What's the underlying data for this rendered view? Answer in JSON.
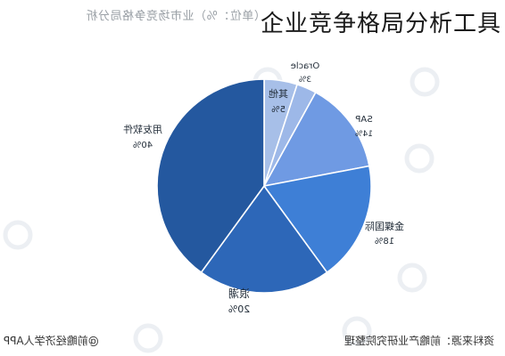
{
  "header": {
    "subtitle": "（单位：%）业市场竞争格局分析",
    "overlay_title": "企业竞争格局分析工具"
  },
  "footer": {
    "left": "@前瞻经济学人APP",
    "right": "资料来源：前瞻产业研究院整理"
  },
  "colors": {
    "light": "#a7bfe8",
    "mid": "#6f9ae3",
    "blue": "#3e7fd6",
    "deep": "#2d67b8",
    "dark": "#24589f",
    "border": "#ffffff"
  },
  "chart_data": {
    "type": "pie",
    "title": "",
    "start": "top",
    "direction": "counterclockwise",
    "slices": [
      {
        "label": "其他",
        "value": 5,
        "display": "5%",
        "color": "#a7bfe8"
      },
      {
        "label": "Oracle",
        "value": 3,
        "display": "3%",
        "color": "#9db8e8"
      },
      {
        "label": "SAP",
        "value": 14,
        "display": "14%",
        "color": "#6f9ae3"
      },
      {
        "label": "金蝶国际",
        "value": 18,
        "display": "18%",
        "color": "#3e7fd6"
      },
      {
        "label": "浪潮",
        "value": 20,
        "display": "20%",
        "color": "#2d67b8"
      },
      {
        "label": "用友软件",
        "value": 40,
        "display": "40%",
        "color": "#24589f"
      }
    ]
  }
}
